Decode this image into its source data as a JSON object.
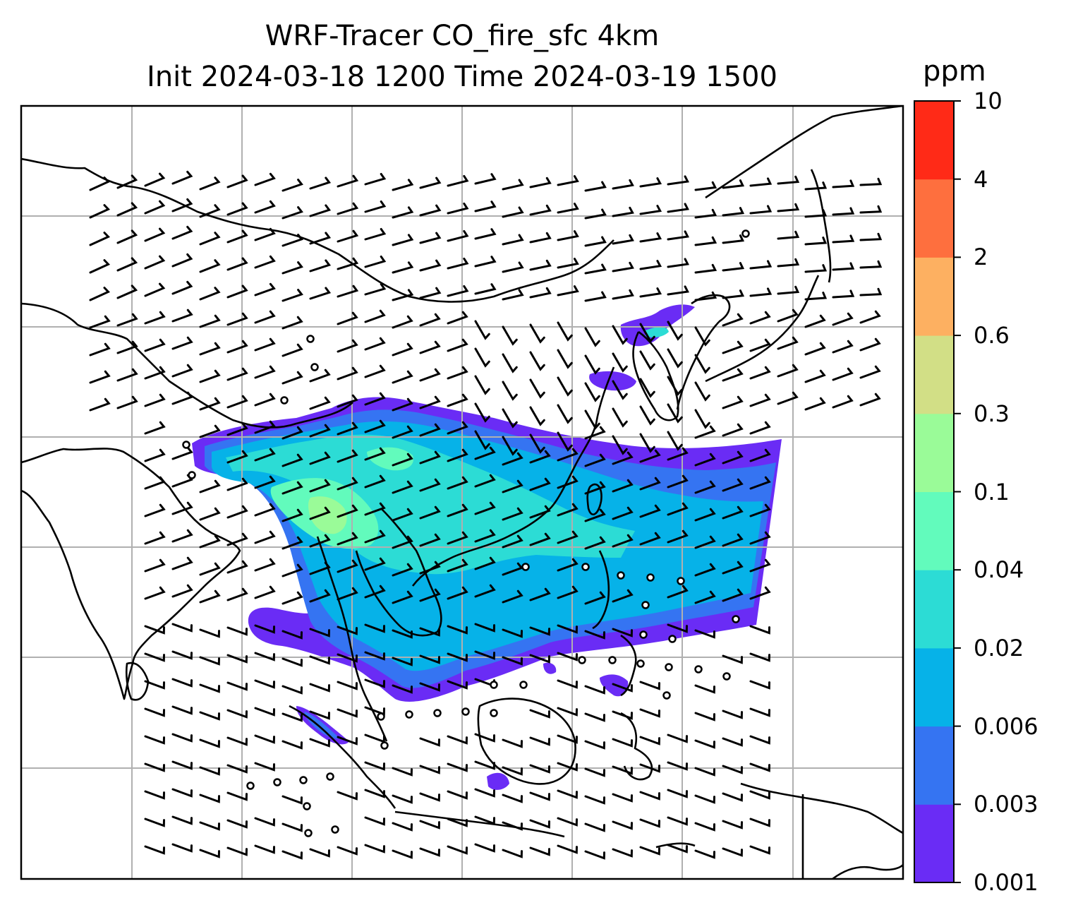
{
  "title": {
    "line1": "WRF-Tracer CO_fire_sfc 4km",
    "line2": "Init 2024-03-18 1200 Time 2024-03-19 1500"
  },
  "colorbar": {
    "unit": "ppm",
    "levels": [
      "0.001",
      "0.003",
      "0.006",
      "0.02",
      "0.04",
      "0.1",
      "0.3",
      "0.6",
      "2",
      "4",
      "10"
    ],
    "colors": [
      "#6a2cf5",
      "#3574f2",
      "#06b2e8",
      "#2cdcd5",
      "#62fbbc",
      "#9afb98",
      "#d2df86",
      "#fdb061",
      "#fe6f3e",
      "#ff2a17"
    ]
  },
  "map": {
    "coastline_color": "#000000",
    "grid_color": "#b0b0b0",
    "background": "#ffffff",
    "features": [
      "coastlines",
      "country-borders",
      "lat-lon-gridlines",
      "wind-barbs",
      "calm-wind-circles"
    ]
  }
}
